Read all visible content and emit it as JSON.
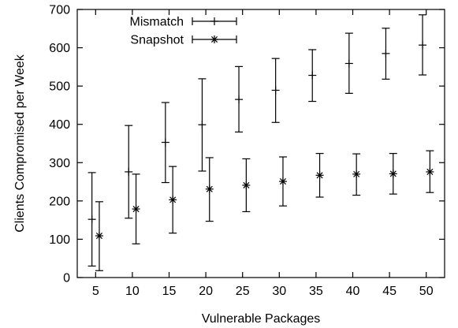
{
  "chart_data": {
    "type": "scatter",
    "xlabel": "Vulnerable Packages",
    "ylabel": "Clients Compromised per Week",
    "xlim": [
      2.5,
      52.5
    ],
    "ylim": [
      0,
      700
    ],
    "xticks": [
      5,
      10,
      15,
      20,
      25,
      30,
      35,
      40,
      45,
      50
    ],
    "yticks": [
      0,
      100,
      200,
      300,
      400,
      500,
      600,
      700
    ],
    "legend_position": "top-left",
    "grid": false,
    "series": [
      {
        "name": "Mismatch",
        "marker": "plus",
        "x": [
          4.5,
          9.5,
          14.5,
          19.5,
          24.5,
          29.5,
          34.5,
          39.5,
          44.5,
          49.5
        ],
        "y": [
          152,
          276,
          353,
          399,
          465,
          489,
          528,
          559,
          585,
          607
        ],
        "err_low": [
          30,
          155,
          248,
          278,
          380,
          405,
          460,
          481,
          518,
          529
        ],
        "err_high": [
          274,
          397,
          457,
          519,
          551,
          572,
          595,
          638,
          651,
          686
        ]
      },
      {
        "name": "Snapshot",
        "marker": "star",
        "x": [
          5.5,
          10.5,
          15.5,
          20.5,
          25.5,
          30.5,
          35.5,
          40.5,
          45.5,
          50.5
        ],
        "y": [
          109,
          179,
          203,
          231,
          241,
          251,
          267,
          270,
          271,
          276
        ],
        "err_low": [
          18,
          88,
          116,
          147,
          172,
          187,
          210,
          215,
          218,
          222
        ],
        "err_high": [
          198,
          270,
          290,
          313,
          310,
          315,
          324,
          323,
          324,
          331
        ]
      }
    ]
  }
}
